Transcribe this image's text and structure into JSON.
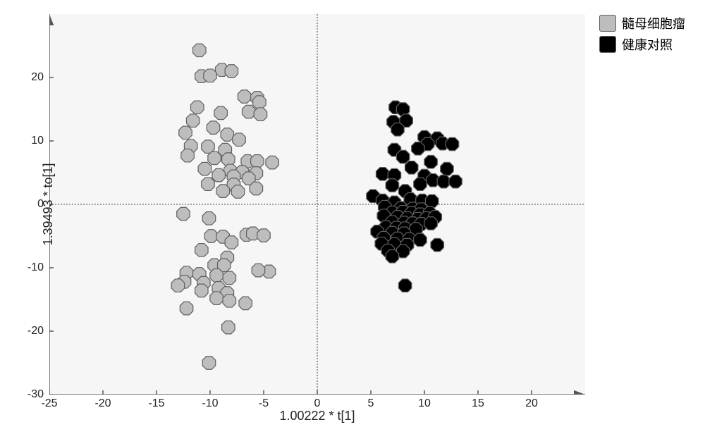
{
  "chart": {
    "type": "scatter",
    "background_color": "#f6f6f6",
    "plot_border_color": "#d3d3d3",
    "axis_line_color": "#555555",
    "zero_line_color": "#444444",
    "zero_line_dash": "2 2",
    "tick_length": 6,
    "tick_fontsize": 16,
    "label_fontsize": 18,
    "xlabel": "1.00222 * t[1]",
    "ylabel": "1.39493 * to[1]",
    "xlim": [
      -25,
      25
    ],
    "ylim": [
      -30,
      30
    ],
    "xticks": [
      -25,
      -20,
      -15,
      -10,
      -5,
      0,
      5,
      10,
      15,
      20
    ],
    "yticks": [
      -30,
      -20,
      -10,
      0,
      10,
      20
    ],
    "marker_radius": 10,
    "marker_stroke": "#606060",
    "marker_stroke_width": 1.2,
    "marker_opacity": 1.0,
    "arrow_size": 10,
    "series": [
      {
        "id": "group1",
        "label": "髓母细胞瘤",
        "color": "#bdbdbd",
        "points": [
          [
            -11,
            24.3
          ],
          [
            -8.9,
            21.2
          ],
          [
            -8,
            21
          ],
          [
            -10.8,
            20.2
          ],
          [
            -10,
            20.3
          ],
          [
            -6.8,
            17
          ],
          [
            -5.6,
            16.8
          ],
          [
            -5.4,
            16.1
          ],
          [
            -11.2,
            15.3
          ],
          [
            -9,
            14.4
          ],
          [
            -6.4,
            14.6
          ],
          [
            -5.3,
            14.2
          ],
          [
            -11.6,
            13.2
          ],
          [
            -9.7,
            12.1
          ],
          [
            -12.3,
            11.3
          ],
          [
            -8.4,
            11
          ],
          [
            -7.3,
            10.2
          ],
          [
            -11.8,
            9.2
          ],
          [
            -10.2,
            9.1
          ],
          [
            -8.6,
            8.6
          ],
          [
            -12.1,
            7.7
          ],
          [
            -9.6,
            7.3
          ],
          [
            -8.3,
            7.1
          ],
          [
            -6.5,
            6.8
          ],
          [
            -5.6,
            6.8
          ],
          [
            -4.2,
            6.6
          ],
          [
            -10.5,
            5.6
          ],
          [
            -8.1,
            5.3
          ],
          [
            -7.0,
            5.1
          ],
          [
            -5.7,
            4.9
          ],
          [
            -9.2,
            4.6
          ],
          [
            -7.8,
            4.4
          ],
          [
            -6.4,
            4.1
          ],
          [
            -10.2,
            3.2
          ],
          [
            -7.8,
            3.1
          ],
          [
            -5.7,
            2.5
          ],
          [
            -8.8,
            2.1
          ],
          [
            -7.4,
            2.0
          ],
          [
            -12.5,
            -1.5
          ],
          [
            -10.1,
            -2.2
          ],
          [
            -6.6,
            -4.8
          ],
          [
            -6.0,
            -4.6
          ],
          [
            -5.0,
            -4.9
          ],
          [
            -9.9,
            -5.0
          ],
          [
            -8.8,
            -5.1
          ],
          [
            -8.0,
            -6.0
          ],
          [
            -10.8,
            -7.2
          ],
          [
            -8.4,
            -8.4
          ],
          [
            -9.6,
            -9.6
          ],
          [
            -8.7,
            -9.6
          ],
          [
            -4.5,
            -10.6
          ],
          [
            -5.5,
            -10.4
          ],
          [
            -12.2,
            -10.8
          ],
          [
            -11.0,
            -11.0
          ],
          [
            -9.4,
            -11.2
          ],
          [
            -8.2,
            -11.6
          ],
          [
            -12.4,
            -12.2
          ],
          [
            -10.6,
            -12.4
          ],
          [
            -13.0,
            -12.8
          ],
          [
            -9.2,
            -13.2
          ],
          [
            -8.4,
            -14.0
          ],
          [
            -10.8,
            -13.6
          ],
          [
            -9.4,
            -14.8
          ],
          [
            -8.2,
            -15.2
          ],
          [
            -6.7,
            -15.6
          ],
          [
            -12.2,
            -16.4
          ],
          [
            -8.3,
            -19.4
          ],
          [
            -10.1,
            -25.0
          ]
        ]
      },
      {
        "id": "group2",
        "label": "健康对照",
        "color": "#000000",
        "points": [
          [
            7.3,
            15.3
          ],
          [
            8.0,
            15.0
          ],
          [
            7.1,
            13.0
          ],
          [
            8.3,
            13.2
          ],
          [
            7.5,
            11.8
          ],
          [
            10.0,
            10.6
          ],
          [
            11.2,
            10.4
          ],
          [
            10.3,
            9.5
          ],
          [
            11.7,
            9.6
          ],
          [
            12.6,
            9.5
          ],
          [
            7.2,
            8.6
          ],
          [
            9.4,
            8.8
          ],
          [
            8.0,
            7.5
          ],
          [
            10.6,
            6.7
          ],
          [
            8.8,
            5.8
          ],
          [
            12.1,
            5.6
          ],
          [
            6.1,
            4.8
          ],
          [
            7.2,
            4.6
          ],
          [
            10.0,
            4.5
          ],
          [
            10.8,
            3.8
          ],
          [
            11.8,
            3.6
          ],
          [
            12.9,
            3.6
          ],
          [
            7.0,
            3.0
          ],
          [
            9.6,
            3.2
          ],
          [
            5.2,
            1.3
          ],
          [
            8.2,
            2.1
          ],
          [
            6.1,
            0.6
          ],
          [
            7.2,
            0.3
          ],
          [
            8.7,
            0.8
          ],
          [
            9.8,
            0.6
          ],
          [
            10.7,
            0.5
          ],
          [
            6.3,
            -0.4
          ],
          [
            7.8,
            -0.6
          ],
          [
            8.9,
            -0.7
          ],
          [
            9.7,
            -0.8
          ],
          [
            7.0,
            -1.3
          ],
          [
            8.0,
            -1.2
          ],
          [
            8.8,
            -1.4
          ],
          [
            9.6,
            -1.6
          ],
          [
            10.5,
            -1.4
          ],
          [
            6.2,
            -1.8
          ],
          [
            7.5,
            -2.0
          ],
          [
            8.4,
            -2.2
          ],
          [
            9.4,
            -2.3
          ],
          [
            10.2,
            -2.2
          ],
          [
            11.0,
            -2.0
          ],
          [
            7.0,
            -2.8
          ],
          [
            8.1,
            -2.9
          ],
          [
            8.9,
            -3.0
          ],
          [
            9.7,
            -3.1
          ],
          [
            10.6,
            -3.0
          ],
          [
            6.4,
            -3.6
          ],
          [
            7.4,
            -3.7
          ],
          [
            8.2,
            -3.8
          ],
          [
            9.2,
            -3.9
          ],
          [
            5.6,
            -4.3
          ],
          [
            7.0,
            -4.5
          ],
          [
            8.1,
            -4.6
          ],
          [
            6.2,
            -5.3
          ],
          [
            7.5,
            -5.4
          ],
          [
            8.6,
            -5.5
          ],
          [
            9.6,
            -5.6
          ],
          [
            6.0,
            -6.2
          ],
          [
            7.2,
            -6.3
          ],
          [
            8.4,
            -6.4
          ],
          [
            11.2,
            -6.4
          ],
          [
            6.6,
            -7.3
          ],
          [
            8.0,
            -7.4
          ],
          [
            7.0,
            -8.2
          ],
          [
            8.2,
            -12.8
          ]
        ]
      }
    ]
  },
  "legend": {
    "position": "top-right",
    "fontsize": 18,
    "text_color": "#333333",
    "swatch_size": 22
  }
}
